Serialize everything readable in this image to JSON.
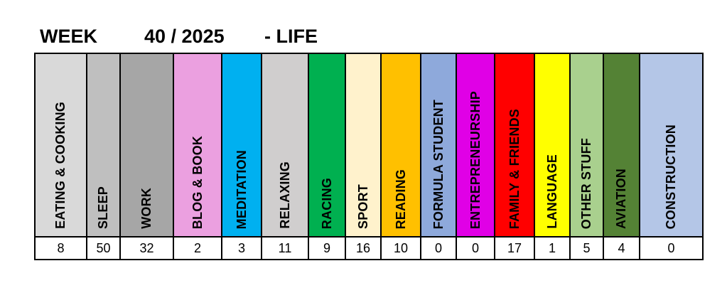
{
  "header": {
    "week_label": "WEEK",
    "week_number": "40 / 2025",
    "section": "- LIFE"
  },
  "categories": [
    {
      "label": "EATING & COOKING",
      "value": "8",
      "color": "#d9d9d9"
    },
    {
      "label": "SLEEP",
      "value": "50",
      "color": "#bfbfbf"
    },
    {
      "label": "WORK",
      "value": "32",
      "color": "#a6a6a6"
    },
    {
      "label": "BLOG & BOOK",
      "value": "2",
      "color": "#eba0e0"
    },
    {
      "label": "MEDITATION",
      "value": "3",
      "color": "#00b0f0"
    },
    {
      "label": "RELAXING",
      "value": "11",
      "color": "#d0cece"
    },
    {
      "label": "RACING",
      "value": "9",
      "color": "#00b050"
    },
    {
      "label": "SPORT",
      "value": "16",
      "color": "#fff2cc"
    },
    {
      "label": "READING",
      "value": "10",
      "color": "#ffc000"
    },
    {
      "label": "FORMULA STUDENT",
      "value": "0",
      "color": "#8ea9db"
    },
    {
      "label": "ENTREPRENEURSHIP",
      "value": "0",
      "color": "#e000e6"
    },
    {
      "label": "FAMILY & FRIENDS",
      "value": "17",
      "color": "#ff0000"
    },
    {
      "label": "LANGUAGE",
      "value": "1",
      "color": "#ffff00"
    },
    {
      "label": "OTHER STUFF",
      "value": "5",
      "color": "#a9d08e"
    },
    {
      "label": "AVIATION",
      "value": "4",
      "color": "#548235"
    },
    {
      "label": "CONSTRUCTION",
      "value": "0",
      "color": "#b4c6e7"
    }
  ]
}
